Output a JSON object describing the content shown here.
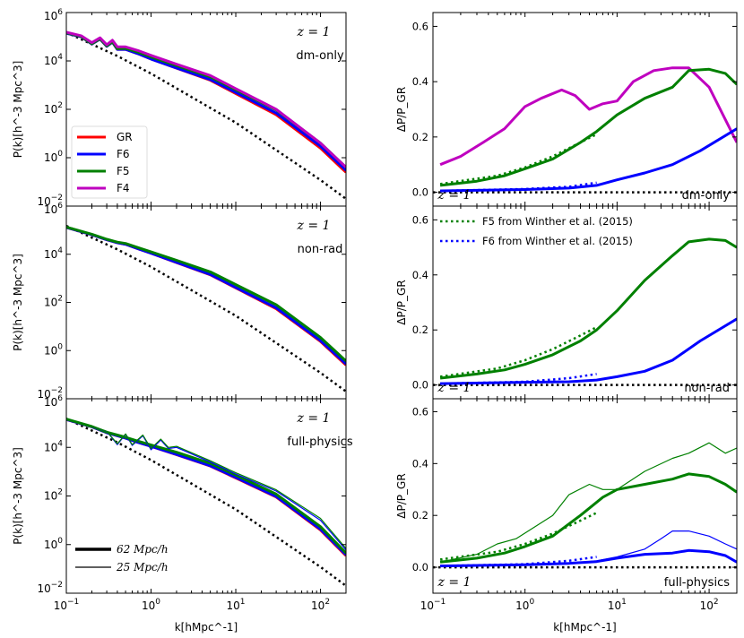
{
  "figure": {
    "x_axis_label": "k[hMpc^-1]",
    "lp_axis_label": "P(k)[h^-3 Mpc^3]",
    "rp_axis_label": "ΔP/P_GR",
    "lp_ticks": [
      "10^-2",
      "10^0",
      "10^2",
      "10^4",
      "10^6"
    ],
    "x_ticks": [
      "10^-1",
      "10^0",
      "10^1",
      "10^2"
    ],
    "rp_ticks": [
      "0.0",
      "0.2",
      "0.4",
      "0.6"
    ]
  },
  "legend_models": [
    {
      "label": "GR",
      "color": "#ff0000"
    },
    {
      "label": "F6",
      "color": "#0000ff"
    },
    {
      "label": "F5",
      "color": "#008000"
    },
    {
      "label": "F4",
      "color": "#bf00bf"
    }
  ],
  "legend_winther": [
    {
      "label": "F5 from Winther et al. (2015)",
      "color": "#008000"
    },
    {
      "label": "F6 from Winther et al. (2015)",
      "color": "#0000ff"
    }
  ],
  "legend_box": [
    {
      "label": "62 Mpc/h",
      "width": "thick"
    },
    {
      "label": "25 Mpc/h",
      "width": "thin"
    }
  ],
  "chart_data": [
    {
      "type": "line",
      "panel": "left",
      "row": 0,
      "redshift": "z = 1",
      "label": "dm-only",
      "xscale": "log",
      "yscale": "log",
      "xlim": [
        0.1,
        200
      ],
      "ylim": [
        0.01,
        1000000
      ],
      "xlabel": "k[hMpc^-1]",
      "ylabel": "P(k)[h^-3 Mpc^3]",
      "series": [
        {
          "name": "linear",
          "color": "#000000",
          "style": "dotted",
          "x": [
            0.1,
            0.4,
            1,
            10,
            100,
            200
          ],
          "y": [
            150000,
            16000,
            3000,
            28,
            0.12,
            0.02
          ]
        },
        {
          "name": "GR",
          "color": "#ff0000",
          "x": [
            0.1,
            0.15,
            0.2,
            0.25,
            0.3,
            0.35,
            0.4,
            0.5,
            0.7,
            1,
            2,
            5,
            10,
            30,
            100,
            200
          ],
          "y": [
            140000,
            100000,
            50000,
            80000,
            40000,
            60000,
            30000,
            30000,
            20000,
            12000,
            5000,
            1600,
            450,
            60,
            2.5,
            0.25
          ]
        },
        {
          "name": "F6",
          "color": "#0000ff",
          "x": [
            0.1,
            0.15,
            0.2,
            0.25,
            0.3,
            0.35,
            0.4,
            0.5,
            0.7,
            1,
            2,
            5,
            10,
            30,
            100,
            200
          ],
          "y": [
            140000,
            100000,
            50000,
            80000,
            40000,
            60000,
            30000,
            30000,
            20000,
            12000,
            5100,
            1700,
            500,
            70,
            3,
            0.3
          ]
        },
        {
          "name": "F5",
          "color": "#008000",
          "x": [
            0.1,
            0.15,
            0.2,
            0.25,
            0.3,
            0.35,
            0.4,
            0.5,
            0.7,
            1,
            2,
            5,
            10,
            30,
            100,
            200
          ],
          "y": [
            145000,
            103000,
            52000,
            83000,
            42000,
            62000,
            32000,
            33000,
            23000,
            14500,
            6400,
            2200,
            650,
            95,
            4,
            0.4
          ]
        },
        {
          "name": "F4",
          "color": "#bf00bf",
          "x": [
            0.1,
            0.15,
            0.2,
            0.25,
            0.3,
            0.35,
            0.4,
            0.5,
            0.7,
            1,
            2,
            5,
            10,
            30,
            100,
            200
          ],
          "y": [
            155000,
            110000,
            57000,
            90000,
            47000,
            72000,
            38000,
            38000,
            27000,
            17000,
            7300,
            2500,
            720,
            100,
            4,
            0.4
          ]
        }
      ]
    },
    {
      "type": "line",
      "panel": "left",
      "row": 1,
      "redshift": "z = 1",
      "label": "non-rad",
      "xscale": "log",
      "yscale": "log",
      "xlim": [
        0.1,
        200
      ],
      "ylim": [
        0.01,
        1000000
      ],
      "xlabel": "k[hMpc^-1]",
      "ylabel": "P(k)[h^-3 Mpc^3]",
      "series": [
        {
          "name": "linear",
          "color": "#000000",
          "style": "dotted",
          "x": [
            0.1,
            0.4,
            1,
            10,
            100,
            200
          ],
          "y": [
            150000,
            16000,
            3000,
            28,
            0.12,
            0.02
          ]
        },
        {
          "name": "GR",
          "color": "#ff0000",
          "x": [
            0.1,
            0.2,
            0.3,
            0.4,
            0.5,
            0.7,
            1,
            2,
            5,
            10,
            30,
            100,
            200
          ],
          "y": [
            130000,
            65000,
            40000,
            30000,
            26000,
            17000,
            11000,
            4500,
            1400,
            400,
            55,
            2.4,
            0.25
          ]
        },
        {
          "name": "F6",
          "color": "#0000ff",
          "x": [
            0.1,
            0.2,
            0.3,
            0.4,
            0.5,
            0.7,
            1,
            2,
            5,
            10,
            30,
            100,
            200
          ],
          "y": [
            130000,
            65000,
            40000,
            30000,
            26000,
            17000,
            11000,
            4600,
            1450,
            420,
            60,
            2.6,
            0.28
          ]
        },
        {
          "name": "F5",
          "color": "#008000",
          "x": [
            0.1,
            0.2,
            0.3,
            0.4,
            0.5,
            0.7,
            1,
            2,
            5,
            10,
            30,
            100,
            200
          ],
          "y": [
            135000,
            68000,
            42000,
            32000,
            28000,
            19000,
            12500,
            5600,
            1850,
            550,
            80,
            3.5,
            0.37
          ]
        }
      ]
    },
    {
      "type": "line",
      "panel": "left",
      "row": 2,
      "redshift": "z = 1",
      "label": "full-physics",
      "xscale": "log",
      "yscale": "log",
      "xlim": [
        0.1,
        200
      ],
      "ylim": [
        0.01,
        1000000
      ],
      "xlabel": "k[hMpc^-1]",
      "ylabel": "P(k)[h^-3 Mpc^3]",
      "series": [
        {
          "name": "linear",
          "color": "#000000",
          "style": "dotted",
          "x": [
            0.1,
            0.4,
            1,
            10,
            100,
            200
          ],
          "y": [
            150000,
            16000,
            3000,
            28,
            0.12,
            0.02
          ]
        },
        {
          "name": "GR",
          "color": "#ff0000",
          "x": [
            0.1,
            0.2,
            0.3,
            0.4,
            0.5,
            0.7,
            1,
            2,
            5,
            10,
            30,
            100,
            200
          ],
          "y": [
            140000,
            70000,
            40000,
            30000,
            24000,
            16000,
            11000,
            5000,
            1700,
            550,
            90,
            4,
            0.35
          ]
        },
        {
          "name": "F6",
          "color": "#0000ff",
          "x": [
            0.1,
            0.2,
            0.3,
            0.4,
            0.5,
            0.7,
            1,
            2,
            5,
            10,
            30,
            100,
            200
          ],
          "y": [
            140000,
            70000,
            40000,
            30000,
            24000,
            16000,
            11000,
            5100,
            1750,
            580,
            95,
            4.3,
            0.38
          ]
        },
        {
          "name": "F5",
          "color": "#008000",
          "x": [
            0.1,
            0.2,
            0.3,
            0.4,
            0.5,
            0.7,
            1,
            2,
            5,
            10,
            30,
            100,
            200
          ],
          "y": [
            145000,
            72000,
            42000,
            32000,
            26000,
            18000,
            12500,
            6300,
            2200,
            720,
            120,
            5.5,
            0.45
          ]
        },
        {
          "name": "F6 25Mpc/h",
          "color": "#0000ff",
          "width": "thin",
          "x": [
            0.2,
            0.3,
            0.4,
            0.5,
            0.6,
            0.8,
            1,
            1.3,
            1.6,
            2,
            5,
            10,
            30,
            100,
            200
          ],
          "y": [
            70000,
            45000,
            13000,
            35000,
            12000,
            30000,
            8000,
            20000,
            9000,
            10000,
            2500,
            800,
            160,
            10,
            0.6
          ]
        },
        {
          "name": "F5 25Mpc/h",
          "color": "#008000",
          "width": "thin",
          "x": [
            0.2,
            0.3,
            0.4,
            0.5,
            0.6,
            0.8,
            1,
            1.3,
            1.6,
            2,
            5,
            10,
            30,
            100,
            200
          ],
          "y": [
            72000,
            46000,
            14000,
            36000,
            13000,
            32000,
            9000,
            22000,
            10000,
            11000,
            2800,
            900,
            180,
            12,
            0.7
          ]
        }
      ]
    },
    {
      "type": "line",
      "panel": "right",
      "row": 0,
      "redshift": "z = 1",
      "label": "dm-only",
      "xscale": "log",
      "xlim": [
        0.1,
        200
      ],
      "ylim": [
        -0.05,
        0.65
      ],
      "xlabel": "k[hMpc^-1]",
      "ylabel": "ΔP/P_GR",
      "series": [
        {
          "name": "GR",
          "color": "#000000",
          "style": "dotted",
          "x": [
            0.1,
            200
          ],
          "y": [
            0,
            0
          ]
        },
        {
          "name": "F4",
          "color": "#bf00bf",
          "x": [
            0.12,
            0.2,
            0.35,
            0.6,
            1,
            1.5,
            2.5,
            3.5,
            5,
            7,
            10,
            15,
            25,
            40,
            60,
            100,
            200
          ],
          "y": [
            0.1,
            0.13,
            0.18,
            0.23,
            0.31,
            0.34,
            0.37,
            0.35,
            0.3,
            0.32,
            0.33,
            0.4,
            0.44,
            0.45,
            0.45,
            0.38,
            0.18
          ]
        },
        {
          "name": "F5",
          "color": "#008000",
          "x": [
            0.12,
            0.3,
            0.6,
            1,
            2,
            4,
            6,
            10,
            20,
            40,
            60,
            100,
            150,
            200
          ],
          "y": [
            0.025,
            0.04,
            0.06,
            0.085,
            0.12,
            0.18,
            0.22,
            0.28,
            0.34,
            0.38,
            0.44,
            0.445,
            0.43,
            0.39
          ]
        },
        {
          "name": "F6",
          "color": "#0000ff",
          "x": [
            0.12,
            1,
            3,
            6,
            10,
            20,
            40,
            80,
            200
          ],
          "y": [
            0.005,
            0.01,
            0.015,
            0.025,
            0.045,
            0.07,
            0.1,
            0.15,
            0.23
          ]
        },
        {
          "name": "F5 Winther",
          "color": "#008000",
          "style": "dotted",
          "x": [
            0.12,
            0.5,
            1,
            2,
            4,
            6
          ],
          "y": [
            0.03,
            0.06,
            0.09,
            0.13,
            0.18,
            0.21
          ]
        },
        {
          "name": "F6 Winther",
          "color": "#0000ff",
          "style": "dotted",
          "x": [
            0.12,
            1,
            3,
            6
          ],
          "y": [
            0.005,
            0.012,
            0.02,
            0.035
          ]
        }
      ]
    },
    {
      "type": "line",
      "panel": "right",
      "row": 1,
      "redshift": "z = 1",
      "label": "non-rad",
      "xscale": "log",
      "xlim": [
        0.1,
        200
      ],
      "ylim": [
        -0.05,
        0.65
      ],
      "xlabel": "k[hMpc^-1]",
      "ylabel": "ΔP/P_GR",
      "series": [
        {
          "name": "GR",
          "color": "#000000",
          "style": "dotted",
          "x": [
            0.1,
            200
          ],
          "y": [
            0,
            0
          ]
        },
        {
          "name": "F5",
          "color": "#008000",
          "x": [
            0.12,
            0.3,
            0.6,
            1,
            2,
            4,
            6,
            10,
            20,
            40,
            60,
            100,
            150,
            200
          ],
          "y": [
            0.025,
            0.04,
            0.055,
            0.075,
            0.11,
            0.16,
            0.2,
            0.27,
            0.38,
            0.47,
            0.52,
            0.53,
            0.525,
            0.5
          ]
        },
        {
          "name": "F6",
          "color": "#0000ff",
          "x": [
            0.12,
            1,
            3,
            6,
            10,
            20,
            40,
            80,
            200
          ],
          "y": [
            0.005,
            0.01,
            0.012,
            0.018,
            0.03,
            0.05,
            0.09,
            0.16,
            0.24
          ]
        },
        {
          "name": "F5 Winther",
          "color": "#008000",
          "style": "dotted",
          "x": [
            0.12,
            0.5,
            1,
            2,
            4,
            6
          ],
          "y": [
            0.03,
            0.06,
            0.09,
            0.13,
            0.18,
            0.21
          ]
        },
        {
          "name": "F6 Winther",
          "color": "#0000ff",
          "style": "dotted",
          "x": [
            0.12,
            1,
            3,
            6
          ],
          "y": [
            0.005,
            0.012,
            0.025,
            0.04
          ]
        }
      ]
    },
    {
      "type": "line",
      "panel": "right",
      "row": 2,
      "redshift": "z = 1",
      "label": "full-physics",
      "xscale": "log",
      "xlim": [
        0.1,
        200
      ],
      "ylim": [
        -0.1,
        0.65
      ],
      "xlabel": "k[hMpc^-1]",
      "ylabel": "ΔP/P_GR",
      "series": [
        {
          "name": "GR",
          "color": "#000000",
          "style": "dotted",
          "x": [
            0.1,
            200
          ],
          "y": [
            0,
            0
          ]
        },
        {
          "name": "F5",
          "color": "#008000",
          "x": [
            0.12,
            0.3,
            0.6,
            1,
            2,
            4,
            7,
            10,
            20,
            40,
            60,
            100,
            150,
            200
          ],
          "y": [
            0.02,
            0.035,
            0.055,
            0.08,
            0.12,
            0.2,
            0.27,
            0.3,
            0.32,
            0.34,
            0.36,
            0.35,
            0.32,
            0.29
          ]
        },
        {
          "name": "F6",
          "color": "#0000ff",
          "x": [
            0.12,
            1,
            3,
            6,
            10,
            20,
            40,
            60,
            100,
            150,
            200
          ],
          "y": [
            0.005,
            0.01,
            0.015,
            0.022,
            0.035,
            0.05,
            0.055,
            0.065,
            0.06,
            0.045,
            0.02
          ]
        },
        {
          "name": "F5 25Mpc/h",
          "color": "#008000",
          "width": "thin",
          "x": [
            0.12,
            0.3,
            0.5,
            0.8,
            1.2,
            2,
            3,
            5,
            7,
            10,
            20,
            40,
            60,
            100,
            150,
            200
          ],
          "y": [
            0.02,
            0.05,
            0.09,
            0.11,
            0.15,
            0.2,
            0.28,
            0.32,
            0.3,
            0.3,
            0.37,
            0.42,
            0.44,
            0.48,
            0.44,
            0.46
          ]
        },
        {
          "name": "F6 25Mpc/h",
          "color": "#0000ff",
          "width": "thin",
          "x": [
            0.12,
            1,
            3,
            6,
            10,
            20,
            30,
            40,
            60,
            100,
            150,
            200
          ],
          "y": [
            0.005,
            0.01,
            0.015,
            0.025,
            0.04,
            0.07,
            0.11,
            0.14,
            0.14,
            0.12,
            0.09,
            0.07
          ]
        },
        {
          "name": "F5 Winther",
          "color": "#008000",
          "style": "dotted",
          "x": [
            0.12,
            0.5,
            1,
            2,
            4,
            6
          ],
          "y": [
            0.03,
            0.06,
            0.09,
            0.13,
            0.18,
            0.21
          ]
        },
        {
          "name": "F6 Winther",
          "color": "#0000ff",
          "style": "dotted",
          "x": [
            0.12,
            1,
            3,
            6
          ],
          "y": [
            0.005,
            0.012,
            0.025,
            0.04
          ]
        }
      ]
    }
  ]
}
